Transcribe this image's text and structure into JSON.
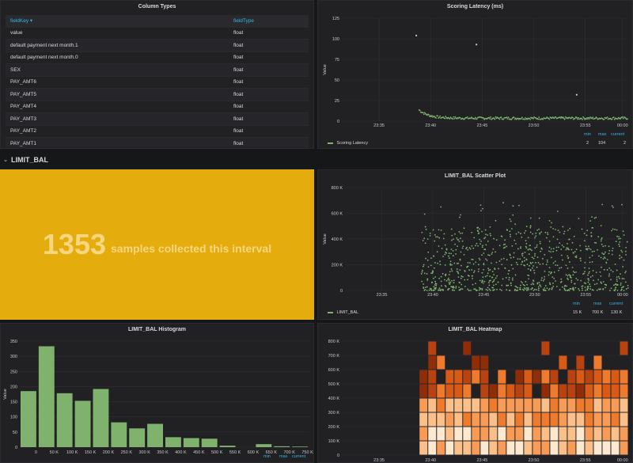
{
  "column_types": {
    "title": "Column Types",
    "headers": [
      "fieldKey ▾",
      "fieldType"
    ],
    "rows": [
      [
        "value",
        "float"
      ],
      [
        "default payment next month.1",
        "float"
      ],
      [
        "default payment next month.0",
        "float"
      ],
      [
        "SEX",
        "float"
      ],
      [
        "PAY_AMT6",
        "float"
      ],
      [
        "PAY_AMT5",
        "float"
      ],
      [
        "PAY_AMT4",
        "float"
      ],
      [
        "PAY_AMT3",
        "float"
      ],
      [
        "PAY_AMT2",
        "float"
      ],
      [
        "PAY_AMT1",
        "float"
      ]
    ]
  },
  "row_header": {
    "label": "LIMIT_BAL",
    "chevron": "chevron-down-icon"
  },
  "single_stat": {
    "value": "1353",
    "postfix": "samples collected this interval",
    "bg_color": "#e5ac0e"
  },
  "legend_headers": {
    "min": "min",
    "max": "max",
    "current": "current"
  },
  "latency": {
    "legend": {
      "name": "Scoring Latency",
      "min": "2",
      "max": "104",
      "current": "2"
    }
  },
  "scatter": {
    "legend": {
      "name": "LIMIT_BAL",
      "min": "15 K",
      "max": "700 K",
      "current": "130 K"
    }
  },
  "chart_data": [
    {
      "type": "scatter",
      "title": "Scoring Latency (ms)",
      "ylabel": "Value",
      "x_ticks": [
        "23:35",
        "23:40",
        "23:45",
        "23:50",
        "23:55",
        "00:00"
      ],
      "y_ticks": [
        "0",
        "25",
        "50",
        "75",
        "100",
        "125"
      ],
      "ylim": [
        0,
        125
      ],
      "series": [
        {
          "name": "Scoring Latency",
          "color": "#7eb26d"
        }
      ],
      "outliers": [
        [
          23.55,
          104
        ],
        [
          23.73,
          93
        ],
        [
          23.94,
          32
        ]
      ],
      "baseline": 2
    },
    {
      "type": "scatter",
      "title": "LIMIT_BAL Scatter Plot",
      "ylabel": "Value",
      "x_ticks": [
        "23:35",
        "23:40",
        "23:45",
        "23:50",
        "23:55",
        "00:00"
      ],
      "y_ticks": [
        "0",
        "200 K",
        "400 K",
        "600 K",
        "800 K"
      ],
      "ylim": [
        0,
        800000
      ],
      "series": [
        {
          "name": "LIMIT_BAL",
          "color": "#7eb26d"
        }
      ]
    },
    {
      "type": "bar",
      "title": "LIMIT_BAL Histogram",
      "ylabel": "Value",
      "categories": [
        "0",
        "50 K",
        "100 K",
        "150 K",
        "200 K",
        "250 K",
        "300 K",
        "350 K",
        "400 K",
        "450 K",
        "500 K",
        "550 K",
        "600 K",
        "650 K",
        "700 K",
        "750 K"
      ],
      "values": [
        185,
        333,
        178,
        153,
        192,
        82,
        62,
        77,
        33,
        30,
        28,
        5,
        0,
        10,
        3,
        2
      ],
      "y_ticks": [
        "0",
        "50",
        "100",
        "150",
        "200",
        "250",
        "300",
        "350"
      ],
      "ylim": [
        0,
        350
      ],
      "color": "#7eb26d"
    },
    {
      "type": "heatmap",
      "title": "LIMIT_BAL Heatmap",
      "x_ticks": [
        "23:35",
        "23:40",
        "23:45",
        "23:50",
        "23:55",
        "00:00"
      ],
      "y_ticks": [
        "0",
        "100 K",
        "200 K",
        "300 K",
        "400 K",
        "500 K",
        "600 K",
        "700 K",
        "800 K"
      ],
      "ylim": [
        0,
        800000
      ]
    }
  ]
}
